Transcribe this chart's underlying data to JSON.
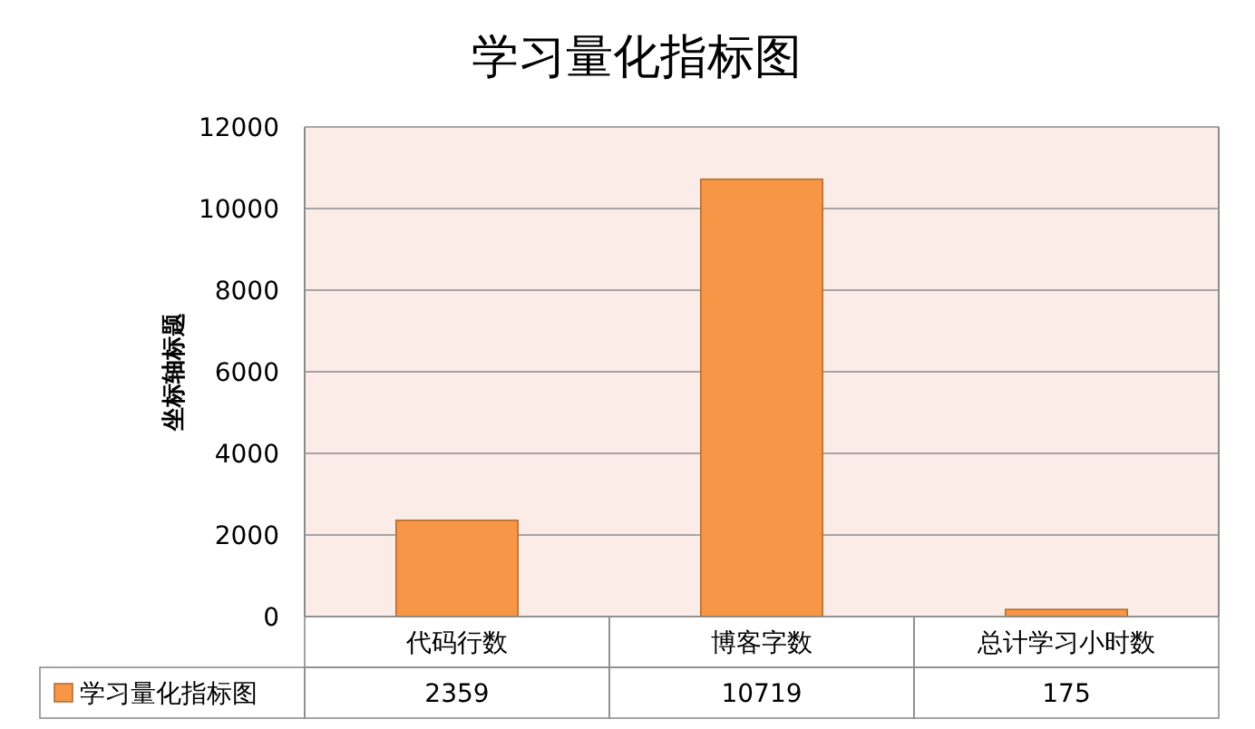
{
  "chart_data": {
    "type": "bar",
    "title": "学习量化指标图",
    "ylabel": "坐标轴标题",
    "categories": [
      "代码行数",
      "博客字数",
      "总计学习小时数"
    ],
    "series": [
      {
        "name": "学习量化指标图",
        "color": "#f79646",
        "values": [
          2359,
          10719,
          175
        ]
      }
    ],
    "ylim": [
      0,
      12000
    ],
    "yticks": [
      0,
      2000,
      4000,
      6000,
      8000,
      10000,
      12000
    ],
    "grid": "y",
    "legend": "bottom",
    "data_labels": true
  }
}
